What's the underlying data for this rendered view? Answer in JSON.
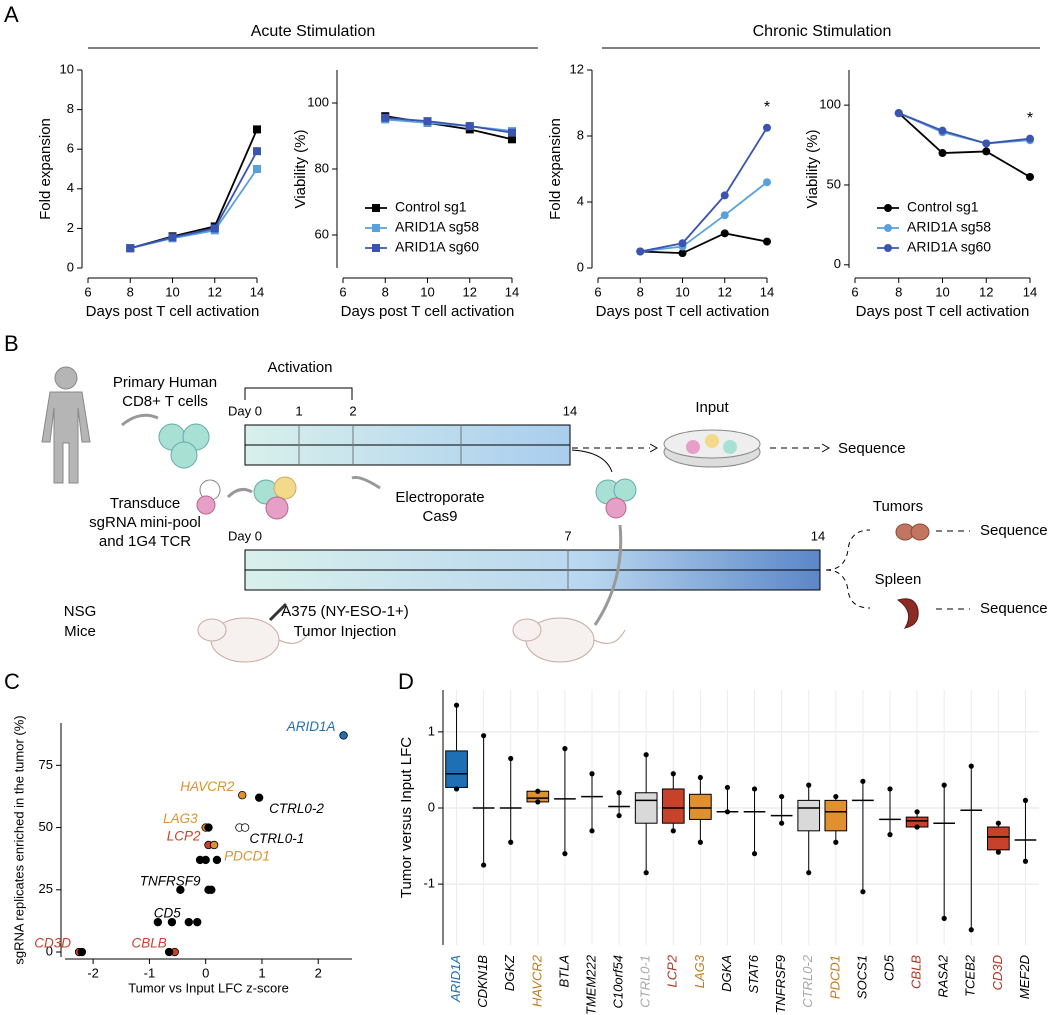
{
  "figure": {
    "panel_labels": [
      "A",
      "B",
      "C",
      "D"
    ],
    "acute": "Acute Stimulation",
    "chronic": "Chronic Stimulation"
  },
  "diagram": {
    "donor": [
      "Primary Human",
      "CD8+ T cells"
    ],
    "activation": "Activation",
    "top_days": [
      "Day 0",
      "1",
      "2",
      "14"
    ],
    "input": "Input",
    "sequence_input": "Sequence",
    "transduce": [
      "Transduce",
      "sgRNA mini-pool",
      "and 1G4 TCR"
    ],
    "electroporate": [
      "Electroporate",
      "Cas9"
    ],
    "bottom_days": [
      "Day 0",
      "7",
      "14"
    ],
    "mice": [
      "NSG",
      "Mice"
    ],
    "injection": [
      "A375 (NY-ESO-1+)",
      "Tumor Injection"
    ],
    "tumors": "Tumors",
    "sequence_tumors": "Sequence",
    "spleen": "Spleen",
    "sequence_spleen": "Sequence"
  },
  "chart_data": [
    {
      "type": "line",
      "x": [
        8,
        10,
        12,
        14
      ],
      "xlim": [
        6,
        14
      ],
      "xticks": [
        6,
        8,
        10,
        12,
        14
      ],
      "ylim": [
        0,
        10
      ],
      "yticks": [
        0,
        2,
        4,
        6,
        8,
        10
      ],
      "xlabel": "Days post T cell activation",
      "ylabel": "Fold expansion",
      "marker": "square",
      "series": [
        {
          "color": "#000000",
          "values": [
            1,
            1.6,
            2.1,
            7.0
          ]
        },
        {
          "color": "#5aa0dc",
          "values": [
            1,
            1.5,
            1.9,
            5.0
          ]
        },
        {
          "color": "#3b54b0",
          "values": [
            1,
            1.55,
            2.0,
            5.9
          ]
        }
      ]
    },
    {
      "type": "line",
      "x": [
        8,
        10,
        12,
        14
      ],
      "xlim": [
        6,
        14
      ],
      "xticks": [
        6,
        8,
        10,
        12,
        14
      ],
      "ylim": [
        50,
        110
      ],
      "yticks": [
        60,
        80,
        100
      ],
      "xlabel": "Days post T cell activation",
      "ylabel": "Viability (%)",
      "marker": "square",
      "legend": "lower-left",
      "series": [
        {
          "name": "Control sg1",
          "color": "#000000",
          "values": [
            96,
            94,
            92,
            89
          ]
        },
        {
          "name": "ARID1A sg58",
          "color": "#5aa0dc",
          "values": [
            95,
            94,
            93,
            91.5
          ]
        },
        {
          "name": "ARID1A sg60",
          "color": "#3b54b0",
          "values": [
            95.5,
            94.5,
            93,
            91
          ]
        }
      ]
    },
    {
      "type": "line",
      "x": [
        8,
        10,
        12,
        14
      ],
      "xlim": [
        6,
        14
      ],
      "xticks": [
        6,
        8,
        10,
        12,
        14
      ],
      "ylim": [
        0,
        12
      ],
      "yticks": [
        0,
        4,
        8,
        12
      ],
      "xlabel": "Days post T cell activation",
      "ylabel": "Fold expansion",
      "marker": "circle",
      "annotation": "*",
      "series": [
        {
          "color": "#000000",
          "values": [
            1,
            0.9,
            2.1,
            1.6
          ]
        },
        {
          "color": "#5aa0dc",
          "values": [
            1,
            1.3,
            3.2,
            5.2
          ]
        },
        {
          "color": "#3b54b0",
          "values": [
            1,
            1.5,
            4.4,
            8.5
          ]
        }
      ]
    },
    {
      "type": "line",
      "x": [
        8,
        10,
        12,
        14
      ],
      "xlim": [
        6,
        14
      ],
      "xticks": [
        6,
        8,
        10,
        12,
        14
      ],
      "ylim": [
        -2,
        122
      ],
      "yticks": [
        0,
        50,
        100
      ],
      "xlabel": "Days post T cell activation",
      "ylabel": "Viability (%)",
      "marker": "circle",
      "legend": "lower-left",
      "annotation": "*",
      "series": [
        {
          "name": "Control sg1",
          "color": "#000000",
          "values": [
            95,
            70,
            71,
            55
          ]
        },
        {
          "name": "ARID1A sg58",
          "color": "#5aa0dc",
          "values": [
            95,
            83,
            76,
            78
          ]
        },
        {
          "name": "ARID1A sg60",
          "color": "#3b54b0",
          "values": [
            95,
            84,
            76,
            79
          ]
        }
      ]
    },
    {
      "type": "scatter",
      "xlabel": "Tumor vs Input LFC z-score",
      "ylabel": "sgRNA replicates enriched in the tumor (%)",
      "xlim": [
        -2.5,
        2.6
      ],
      "xticks": [
        -2,
        -1,
        0,
        1,
        2
      ],
      "ylim": [
        -2,
        92
      ],
      "yticks": [
        0,
        25,
        50,
        75
      ],
      "x": [
        2.45,
        0.65,
        0.95,
        0.0,
        0.05,
        0.6,
        0.7,
        0.05,
        0.15,
        -0.1,
        0.0,
        0.2,
        0.05,
        0.1,
        -0.45,
        -0.3,
        -0.85,
        -0.6,
        -0.15,
        -2.25,
        -2.2,
        -0.55,
        -0.65
      ],
      "values": [
        87,
        63,
        62,
        50,
        50,
        50,
        50,
        43,
        43,
        37,
        37,
        37,
        25,
        25,
        25,
        12,
        12,
        12,
        12,
        0,
        0,
        0,
        0
      ],
      "point_colors": [
        "#1f6fb5",
        "#e0902e",
        "#000000",
        "#e0902e",
        "#000000",
        "#ffffff",
        "#ffffff",
        "#c8412b",
        "#e0902e",
        "#000000",
        "#000000",
        "#000000",
        "#000000",
        "#000000",
        "#000000",
        "#000000",
        "#000000",
        "#000000",
        "#000000",
        "#c8412b",
        "#000000",
        "#c8412b",
        "#000000"
      ],
      "point_labels": [
        "ARID1A",
        "HAVCR2",
        "CTRL0-2",
        "LAG3",
        null,
        "CTRL0-1",
        null,
        "LCP2",
        "PDCD1",
        null,
        null,
        null,
        "TNFRSF9",
        null,
        null,
        "CD5",
        null,
        null,
        null,
        "CD3D",
        null,
        "CBLB",
        null
      ],
      "label_colors": [
        "#1f6fb5",
        "#e0902e",
        "#000000",
        "#e0902e",
        null,
        "#000000",
        null,
        "#c8412b",
        "#e0902e",
        null,
        null,
        null,
        "#000000",
        null,
        null,
        "#000000",
        null,
        null,
        null,
        "#c8412b",
        null,
        "#c8412b",
        null
      ]
    },
    {
      "type": "box",
      "ylabel": "Tumor versus Input LFC",
      "ylim": [
        -1.8,
        1.55
      ],
      "yticks": [
        -1,
        0,
        1
      ],
      "grid": true,
      "categories": [
        "ARID1A",
        "CDKN1B",
        "DGKZ",
        "HAVCR2",
        "BTLA",
        "TMEM222",
        "C10orf54",
        "CTRL0-1",
        "LCP2",
        "LAG3",
        "DGKA",
        "STAT6",
        "TNFRSF9",
        "CTRL0-2",
        "PDCD1",
        "SOCS1",
        "CD5",
        "CBLB",
        "RASA2",
        "TCEB2",
        "CD3D",
        "MEF2D"
      ],
      "min": [
        0.25,
        -0.75,
        -0.45,
        0.08,
        -0.6,
        -0.3,
        -0.1,
        -0.85,
        -0.3,
        -0.45,
        -0.05,
        -0.6,
        -0.2,
        -0.85,
        -0.45,
        -1.1,
        -0.35,
        -0.25,
        -1.45,
        -1.6,
        -0.58,
        -0.7
      ],
      "q1": [
        0.27,
        -0.05,
        0.0,
        0.08,
        0.1,
        0.05,
        -0.05,
        -0.2,
        -0.2,
        -0.15,
        -0.05,
        -0.05,
        -0.15,
        -0.3,
        -0.3,
        -0.05,
        -0.2,
        -0.25,
        -0.2,
        -0.25,
        -0.55,
        -0.5
      ],
      "median": [
        0.45,
        0.0,
        0.0,
        0.13,
        0.12,
        0.15,
        0.02,
        0.1,
        0.0,
        0.0,
        -0.05,
        -0.05,
        -0.1,
        0.0,
        -0.05,
        0.1,
        -0.15,
        -0.17,
        -0.2,
        -0.03,
        -0.38,
        -0.42
      ],
      "q3": [
        0.75,
        0.0,
        0.05,
        0.22,
        0.12,
        0.2,
        0.1,
        0.2,
        0.25,
        0.18,
        -0.02,
        0.0,
        -0.05,
        0.1,
        0.1,
        0.1,
        0.05,
        -0.12,
        -0.18,
        0.1,
        -0.25,
        -0.35
      ],
      "max": [
        1.35,
        0.95,
        0.65,
        0.22,
        0.78,
        0.45,
        0.2,
        0.7,
        0.45,
        0.4,
        0.27,
        0.25,
        0.15,
        0.3,
        0.15,
        0.35,
        0.25,
        -0.05,
        0.3,
        0.55,
        -0.2,
        0.1
      ],
      "box_colors": [
        "#1f6fb5",
        "none",
        "none",
        "#e0902e",
        "none",
        "none",
        "none",
        "#d9d9d9",
        "#c8412b",
        "#e0902e",
        "none",
        "none",
        "none",
        "#d9d9d9",
        "#e0902e",
        "none",
        "none",
        "#c8412b",
        "none",
        "none",
        "#c8412b",
        "none"
      ],
      "label_colors": [
        "#1f6fb5",
        "#000000",
        "#000000",
        "#c07a22",
        "#000000",
        "#000000",
        "#000000",
        "#a8a8a8",
        "#b03424",
        "#c07a22",
        "#000000",
        "#000000",
        "#000000",
        "#a8a8a8",
        "#c07a22",
        "#000000",
        "#000000",
        "#b03424",
        "#000000",
        "#000000",
        "#b03424",
        "#000000"
      ]
    }
  ]
}
